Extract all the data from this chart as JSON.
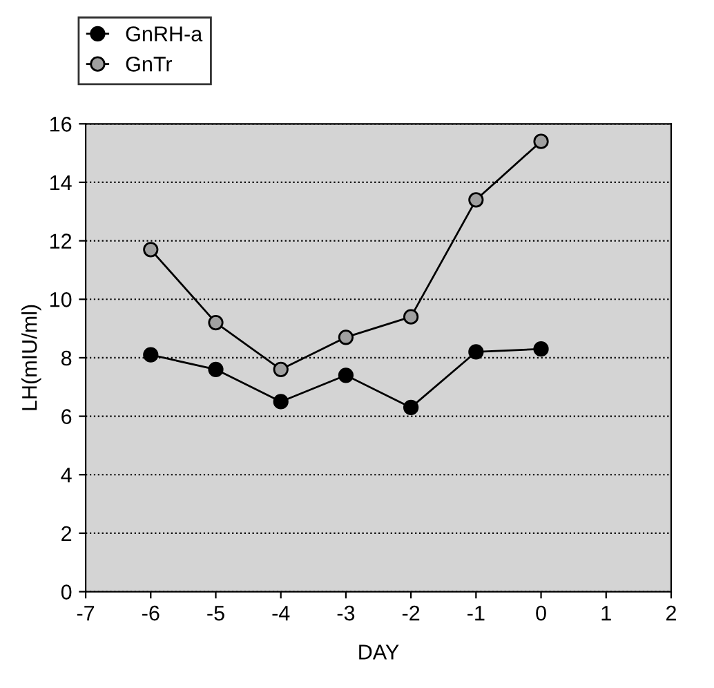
{
  "chart_data": {
    "type": "line",
    "xlabel": "DAY",
    "ylabel": "LH(mIU/ml)",
    "x": [
      -6,
      -5,
      -4,
      -3,
      -2,
      -1,
      0
    ],
    "series": [
      {
        "name": "GnRH-a",
        "color": "#000000",
        "values": [
          8.1,
          7.6,
          6.5,
          7.4,
          6.3,
          8.2,
          8.3
        ]
      },
      {
        "name": "GnTr",
        "color": "#a0a0a0",
        "values": [
          11.7,
          9.2,
          7.6,
          8.7,
          9.4,
          13.4,
          15.4
        ]
      }
    ],
    "xlim": [
      -7,
      2
    ],
    "xticks": [
      -7,
      -6,
      -5,
      -4,
      -3,
      -2,
      -1,
      0,
      1,
      2
    ],
    "ylim": [
      0,
      16
    ],
    "yticks": [
      0,
      2,
      4,
      6,
      8,
      10,
      12,
      14,
      16
    ],
    "grid": "y",
    "legend": "top left",
    "marker": "circle",
    "line_style": "solid"
  }
}
